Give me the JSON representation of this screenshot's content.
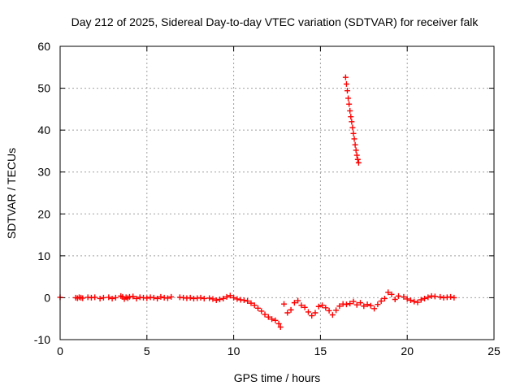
{
  "chart_data": {
    "type": "scatter",
    "title": "Day 212 of 2025, Sidereal Day-to-day VTEC variation (SDTVAR) for receiver falk",
    "xlabel": "GPS time / hours",
    "ylabel": "SDTVAR / TECUs",
    "xlim": [
      0,
      25
    ],
    "ylim": [
      -10,
      60
    ],
    "xticks": [
      0,
      5,
      10,
      15,
      20,
      25
    ],
    "yticks": [
      -10,
      0,
      10,
      20,
      30,
      40,
      50,
      60
    ],
    "xtick_labels": [
      "0",
      "5",
      "10",
      "15",
      "20",
      "25"
    ],
    "ytick_labels": [
      "-10",
      "0",
      "10",
      "20",
      "30",
      "40",
      "50",
      "60"
    ],
    "grid": true,
    "marker": "+",
    "marker_color": "#ff0000",
    "series": [
      {
        "name": "SDTVAR",
        "points": [
          [
            0.0,
            0.1
          ],
          [
            0.9,
            0.0
          ],
          [
            1.0,
            -0.1
          ],
          [
            1.1,
            0.1
          ],
          [
            1.2,
            0.0
          ],
          [
            1.3,
            -0.1
          ],
          [
            1.6,
            0.1
          ],
          [
            1.8,
            0.0
          ],
          [
            2.0,
            0.1
          ],
          [
            2.3,
            -0.2
          ],
          [
            2.5,
            0.0
          ],
          [
            2.8,
            0.1
          ],
          [
            3.0,
            -0.2
          ],
          [
            3.2,
            0.0
          ],
          [
            3.5,
            0.4
          ],
          [
            3.6,
            0.2
          ],
          [
            3.7,
            -0.3
          ],
          [
            3.8,
            0.1
          ],
          [
            3.9,
            -0.1
          ],
          [
            4.0,
            0.2
          ],
          [
            4.2,
            0.3
          ],
          [
            4.4,
            -0.2
          ],
          [
            4.6,
            0.1
          ],
          [
            4.8,
            0.0
          ],
          [
            5.0,
            -0.1
          ],
          [
            5.2,
            0.1
          ],
          [
            5.4,
            0.0
          ],
          [
            5.6,
            -0.2
          ],
          [
            5.8,
            0.2
          ],
          [
            6.0,
            0.0
          ],
          [
            6.2,
            -0.1
          ],
          [
            6.4,
            0.2
          ],
          [
            6.9,
            0.1
          ],
          [
            7.1,
            0.0
          ],
          [
            7.3,
            -0.1
          ],
          [
            7.5,
            0.0
          ],
          [
            7.7,
            -0.2
          ],
          [
            7.9,
            -0.1
          ],
          [
            8.1,
            0.0
          ],
          [
            8.3,
            -0.2
          ],
          [
            8.6,
            -0.1
          ],
          [
            8.8,
            -0.3
          ],
          [
            9.0,
            -0.6
          ],
          [
            9.2,
            -0.4
          ],
          [
            9.4,
            -0.2
          ],
          [
            9.6,
            0.2
          ],
          [
            9.8,
            0.5
          ],
          [
            10.0,
            0.0
          ],
          [
            10.2,
            -0.3
          ],
          [
            10.4,
            -0.5
          ],
          [
            10.6,
            -0.6
          ],
          [
            10.8,
            -0.8
          ],
          [
            11.0,
            -1.3
          ],
          [
            11.2,
            -1.8
          ],
          [
            11.4,
            -2.5
          ],
          [
            11.6,
            -3.2
          ],
          [
            11.8,
            -4.0
          ],
          [
            12.0,
            -4.6
          ],
          [
            12.2,
            -5.1
          ],
          [
            12.4,
            -5.4
          ],
          [
            12.6,
            -6.2
          ],
          [
            12.7,
            -7.0
          ],
          [
            12.9,
            -1.5
          ],
          [
            13.1,
            -3.6
          ],
          [
            13.3,
            -2.9
          ],
          [
            13.5,
            -1.2
          ],
          [
            13.7,
            -0.7
          ],
          [
            13.9,
            -1.8
          ],
          [
            14.1,
            -2.3
          ],
          [
            14.3,
            -3.4
          ],
          [
            14.5,
            -4.3
          ],
          [
            14.7,
            -3.6
          ],
          [
            14.9,
            -2.1
          ],
          [
            15.1,
            -1.8
          ],
          [
            15.3,
            -2.4
          ],
          [
            15.5,
            -3.1
          ],
          [
            15.7,
            -4.1
          ],
          [
            15.9,
            -3.0
          ],
          [
            16.1,
            -2.0
          ],
          [
            16.3,
            -1.5
          ],
          [
            16.5,
            -1.6
          ],
          [
            16.7,
            -1.4
          ],
          [
            16.9,
            -0.9
          ],
          [
            17.1,
            -1.7
          ],
          [
            17.3,
            -1.2
          ],
          [
            17.5,
            -2.0
          ],
          [
            17.7,
            -1.6
          ],
          [
            17.9,
            -1.9
          ],
          [
            18.1,
            -2.6
          ],
          [
            18.3,
            -1.6
          ],
          [
            18.5,
            -0.8
          ],
          [
            18.7,
            -0.2
          ],
          [
            18.9,
            1.3
          ],
          [
            19.1,
            0.8
          ],
          [
            19.3,
            -0.4
          ],
          [
            19.5,
            0.4
          ],
          [
            19.8,
            0.2
          ],
          [
            20.0,
            -0.3
          ],
          [
            20.2,
            -0.6
          ],
          [
            20.4,
            -0.9
          ],
          [
            20.6,
            -1.1
          ],
          [
            20.8,
            -0.5
          ],
          [
            21.0,
            -0.2
          ],
          [
            21.2,
            0.1
          ],
          [
            21.4,
            0.4
          ],
          [
            21.6,
            0.3
          ],
          [
            21.9,
            0.2
          ],
          [
            22.1,
            0.0
          ],
          [
            22.3,
            0.1
          ],
          [
            22.5,
            0.2
          ],
          [
            22.7,
            0.0
          ],
          [
            16.45,
            52.6
          ],
          [
            16.5,
            51.0
          ],
          [
            16.55,
            49.4
          ],
          [
            16.6,
            47.6
          ],
          [
            16.65,
            46.2
          ],
          [
            16.7,
            44.6
          ],
          [
            16.75,
            43.2
          ],
          [
            16.8,
            42.0
          ],
          [
            16.85,
            40.6
          ],
          [
            16.9,
            39.2
          ],
          [
            16.95,
            37.9
          ],
          [
            17.0,
            36.5
          ],
          [
            17.05,
            35.2
          ],
          [
            17.1,
            34.0
          ],
          [
            17.15,
            33.0
          ],
          [
            17.2,
            32.2
          ]
        ]
      }
    ]
  }
}
